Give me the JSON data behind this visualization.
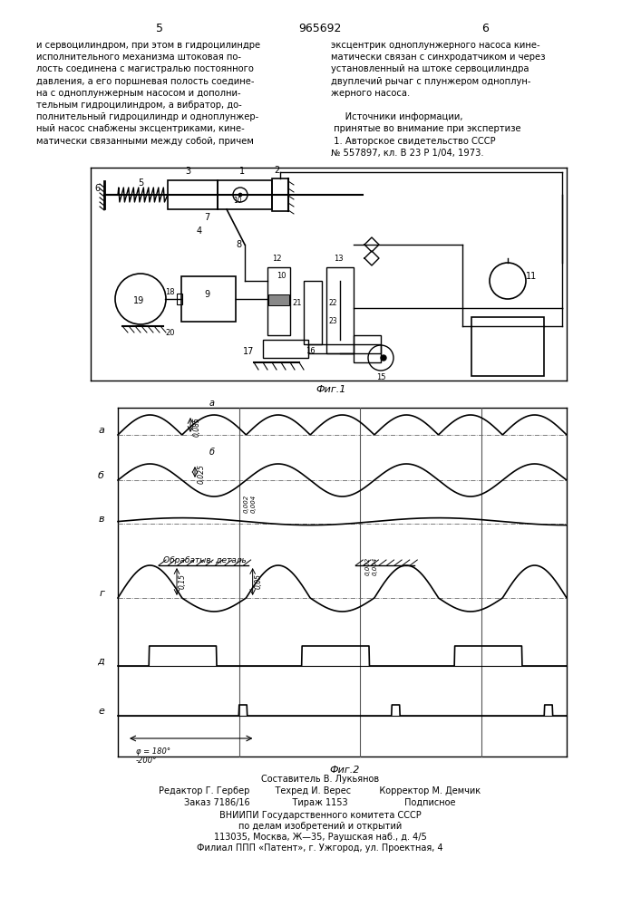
{
  "page_width": 7.07,
  "page_height": 10.0,
  "header_number": "965692",
  "page_left": "5",
  "page_right": "6",
  "text_left": "и сервоцилиндром, при этом в гидроцилиндре\nисполнительного механизма штоковая по-\nлость соединена с магистралью постоянного\nдавления, а его поршневая полость соедине-\nна с одноплунжерным насосом и дополни-\nтельным гидроцилиндром, а вибратор, до-\nполнительный гидроцилиндр и одноплунжер-\nный насос снабжены эксцентриками, кине-\nматически связанными между собой, причем",
  "text_right_1": "эксцентрик одноплунжерного насоса кине-",
  "text_right_2": "матически связан с синхродатчиком и через",
  "text_right_3": "установленный на штоке сервоцилиндра",
  "text_right_4": "двуплечий рычаг с плунжером одноплун-",
  "text_right_5": "жерного насоса.",
  "text_right_6": "     Источники информации,",
  "text_right_7": " принятые во внимание при экспертизе",
  "text_right_8": " 1. Авторское свидетельство СССР",
  "text_right_9": "№ 557897, кл. В 23 Р 1/04, 1973.",
  "fig1_caption": "Фиг.1",
  "fig2_caption": "Фиг.2",
  "footer": [
    "Составитель В. Лукьянов",
    "Редактор Г. Гербер         Техред И. Верес          Корректор М. Демчик",
    "Заказ 7186/16               Тираж 1153                    Подписное",
    "ВНИИПИ Государственного комитета СССР",
    "по делам изобретений и открытий",
    "113035, Москва, Ж—35, Раушская наб., д. 4/5",
    "Филиал ППП «Патент», г. Ужгород, ул. Проектная, 4"
  ]
}
